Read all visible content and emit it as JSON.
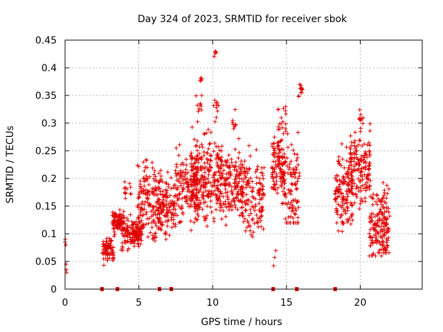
{
  "chart_data": {
    "type": "scatter",
    "title": "Day 324 of 2023, SRMTID for receiver sbok",
    "xlabel": "GPS time / hours",
    "ylabel": "SRMTID / TECUs",
    "xlim": [
      0,
      24.2
    ],
    "ylim": [
      0,
      0.45
    ],
    "x_ticks": [
      0,
      5,
      10,
      15,
      20
    ],
    "x_tick_labels": [
      "0",
      "5",
      "10",
      "15",
      "20"
    ],
    "y_ticks": [
      0,
      0.05,
      0.1,
      0.15,
      0.2,
      0.25,
      0.3,
      0.35,
      0.4,
      0.45
    ],
    "y_tick_labels": [
      "0",
      "0.05",
      "0.1",
      "0.15",
      "0.2",
      "0.25",
      "0.3",
      "0.35",
      "0.4",
      "0.45"
    ],
    "grid": true,
    "marker": "+",
    "marker_color": "#e00000",
    "zero_markers": {
      "marker": "square",
      "y": 0,
      "x": [
        2.5,
        3.55,
        6.4,
        7.2,
        14.1,
        15.7,
        18.3
      ]
    },
    "series": [
      {
        "name": "SRMTID",
        "segments": [
          {
            "x0": 0.0,
            "x1": 0.12,
            "points": [
              [
                0.0,
                0.085
              ],
              [
                0.02,
                0.09
              ],
              [
                0.05,
                0.08
              ],
              [
                0.07,
                0.045
              ],
              [
                0.09,
                0.035
              ],
              [
                0.11,
                0.03
              ]
            ]
          },
          {
            "x0": 2.5,
            "x1": 3.3,
            "count": 70,
            "ymin": 0.04,
            "ymax": 0.1,
            "mean": 0.07
          },
          {
            "x0": 3.2,
            "x1": 4.0,
            "count": 90,
            "ymin": 0.09,
            "ymax": 0.15,
            "mean": 0.12
          },
          {
            "x0": 3.8,
            "x1": 5.2,
            "count": 140,
            "ymin": 0.07,
            "ymax": 0.14,
            "mean": 0.1
          },
          {
            "x0": 4.0,
            "x1": 4.5,
            "count": 12,
            "ymin": 0.15,
            "ymax": 0.21,
            "mean": 0.18
          },
          {
            "x0": 4.9,
            "x1": 6.5,
            "count": 160,
            "ymin": 0.06,
            "ymax": 0.25,
            "mean": 0.16
          },
          {
            "x0": 6.3,
            "x1": 7.5,
            "count": 120,
            "ymin": 0.09,
            "ymax": 0.23,
            "mean": 0.15
          },
          {
            "x0": 7.5,
            "x1": 9.0,
            "count": 150,
            "ymin": 0.12,
            "ymax": 0.28,
            "mean": 0.19
          },
          {
            "x0": 8.5,
            "x1": 10.6,
            "count": 230,
            "ymin": 0.09,
            "ymax": 0.31,
            "mean": 0.2
          },
          {
            "x0": 8.8,
            "x1": 9.3,
            "count": 10,
            "ymin": 0.3,
            "ymax": 0.35,
            "mean": 0.33
          },
          {
            "x0": 9.1,
            "x1": 9.3,
            "count": 5,
            "ymin": 0.37,
            "ymax": 0.39,
            "mean": 0.38
          },
          {
            "x0": 9.9,
            "x1": 10.4,
            "count": 10,
            "ymin": 0.3,
            "ymax": 0.37,
            "mean": 0.33
          },
          {
            "x0": 10.1,
            "x1": 10.25,
            "count": 5,
            "ymin": 0.41,
            "ymax": 0.435,
            "mean": 0.425
          },
          {
            "x0": 10.3,
            "x1": 12.0,
            "count": 180,
            "ymin": 0.1,
            "ymax": 0.28,
            "mean": 0.19
          },
          {
            "x0": 11.2,
            "x1": 11.6,
            "count": 8,
            "ymin": 0.29,
            "ymax": 0.35,
            "mean": 0.31
          },
          {
            "x0": 12.0,
            "x1": 13.5,
            "count": 140,
            "ymin": 0.09,
            "ymax": 0.27,
            "mean": 0.17
          },
          {
            "x0": 14.0,
            "x1": 14.9,
            "count": 110,
            "ymin": 0.14,
            "ymax": 0.3,
            "mean": 0.22
          },
          {
            "x0": 14.4,
            "x1": 15.0,
            "count": 20,
            "ymin": 0.25,
            "ymax": 0.35,
            "mean": 0.3
          },
          {
            "x0": 14.1,
            "x1": 14.3,
            "count": 3,
            "ymin": 0.02,
            "ymax": 0.1,
            "mean": 0.06
          },
          {
            "x0": 14.8,
            "x1": 15.9,
            "count": 100,
            "ymin": 0.12,
            "ymax": 0.31,
            "mean": 0.18
          },
          {
            "x0": 15.8,
            "x1": 16.1,
            "count": 12,
            "ymin": 0.34,
            "ymax": 0.38,
            "mean": 0.36
          },
          {
            "x0": 18.3,
            "x1": 19.5,
            "count": 140,
            "ymin": 0.08,
            "ymax": 0.27,
            "mean": 0.18
          },
          {
            "x0": 19.3,
            "x1": 20.7,
            "count": 150,
            "ymin": 0.12,
            "ymax": 0.3,
            "mean": 0.22
          },
          {
            "x0": 19.9,
            "x1": 20.2,
            "count": 10,
            "ymin": 0.29,
            "ymax": 0.33,
            "mean": 0.31
          },
          {
            "x0": 20.6,
            "x1": 22.0,
            "count": 170,
            "ymin": 0.06,
            "ymax": 0.22,
            "mean": 0.12
          }
        ]
      }
    ]
  }
}
